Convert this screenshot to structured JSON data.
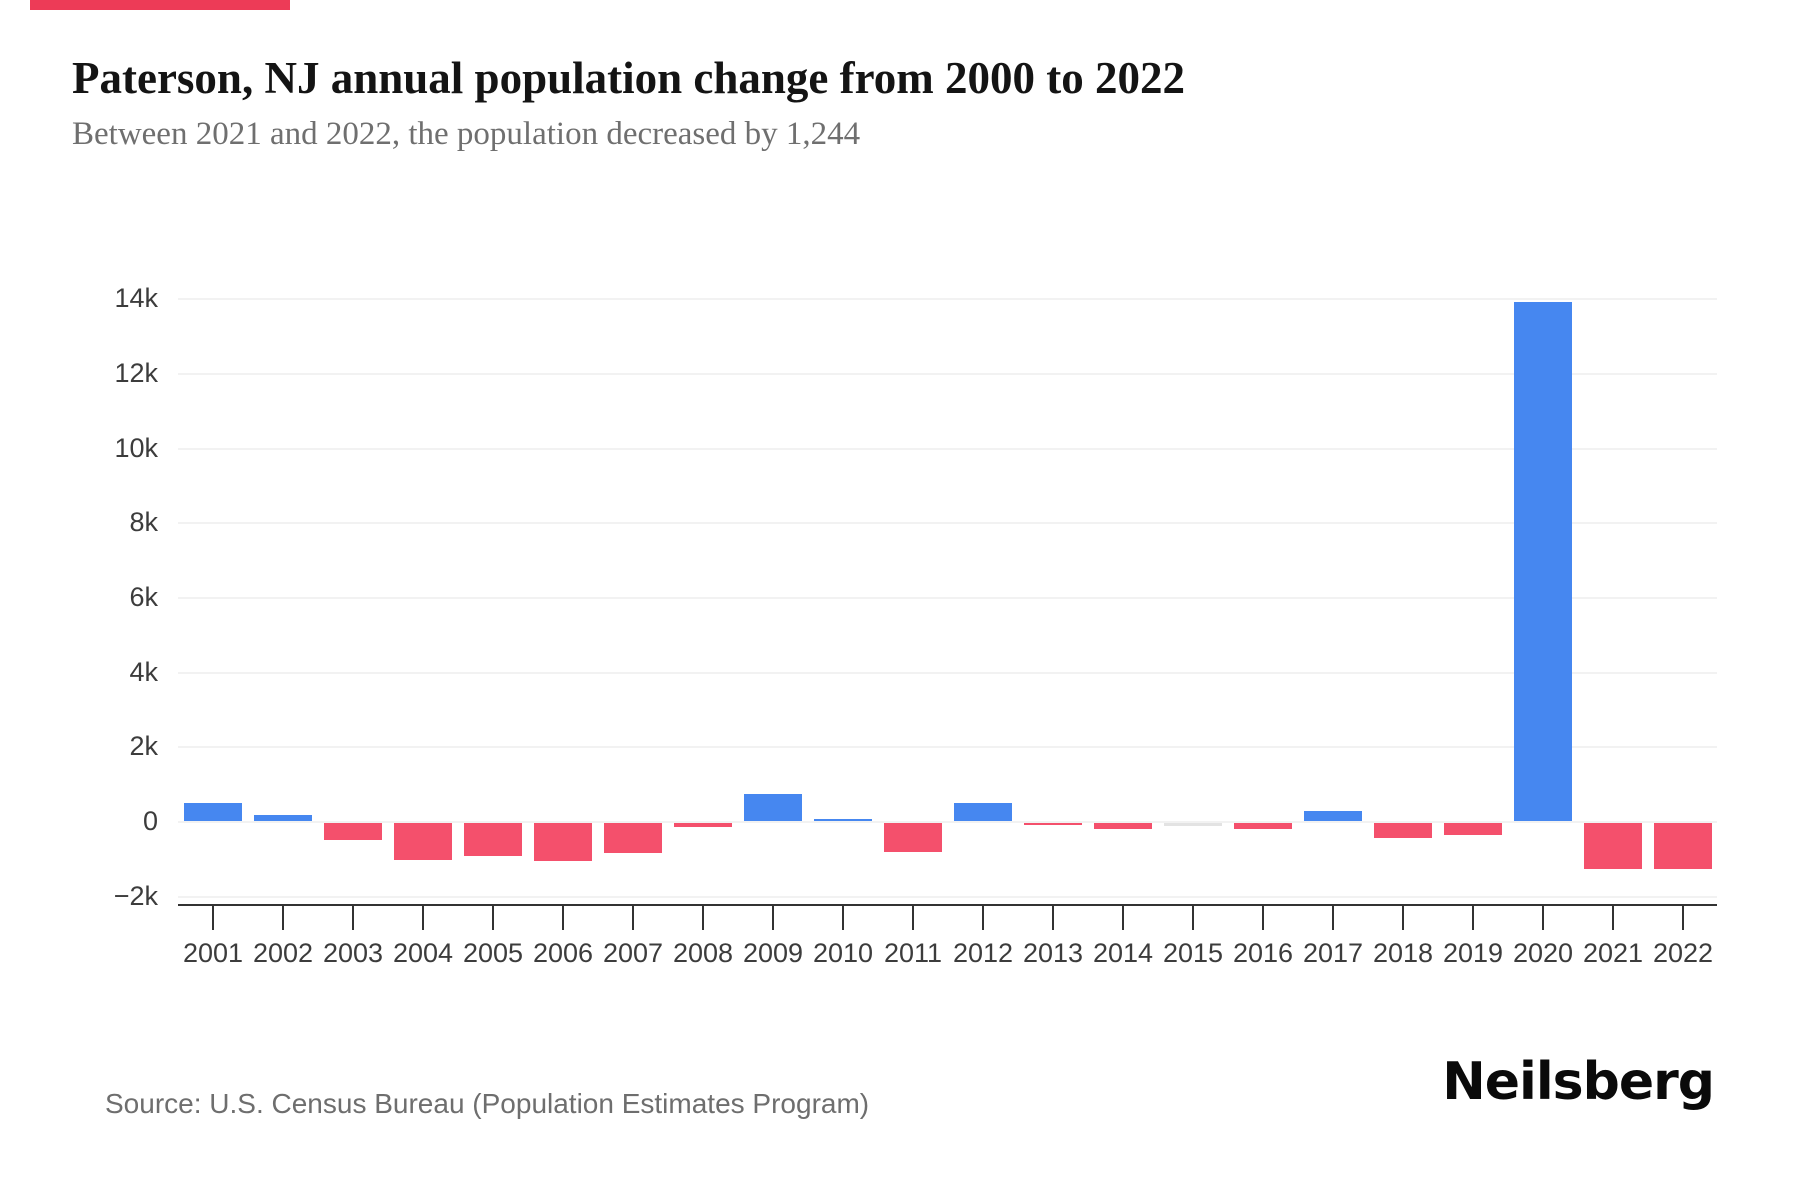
{
  "page": {
    "background": "#FFFFFF",
    "accent_bar_color": "#ED3B57"
  },
  "header": {
    "title": "Paterson, NJ annual population change from 2000 to 2022",
    "subtitle": "Between 2021 and 2022, the population decreased by 1,244"
  },
  "chart_data": {
    "type": "bar",
    "title": "Paterson, NJ annual population change from 2000 to 2022",
    "subtitle": "Between 2021 and 2022, the population decreased by 1,244",
    "categories": [
      "2001",
      "2002",
      "2003",
      "2004",
      "2005",
      "2006",
      "2007",
      "2008",
      "2009",
      "2010",
      "2011",
      "2012",
      "2013",
      "2014",
      "2015",
      "2016",
      "2017",
      "2018",
      "2019",
      "2020",
      "2021",
      "2022"
    ],
    "values": [
      480,
      160,
      -460,
      -990,
      -880,
      -1010,
      -800,
      -120,
      730,
      40,
      -780,
      490,
      -50,
      -150,
      -10,
      -170,
      270,
      -410,
      -330,
      13900,
      -1230,
      -1244
    ],
    "xlabel": "",
    "ylabel": "",
    "ylim": [
      -2200,
      15000
    ],
    "yticks": [
      {
        "label": "14k",
        "value": 14000
      },
      {
        "label": "12k",
        "value": 12000
      },
      {
        "label": "10k",
        "value": 10000
      },
      {
        "label": "8k",
        "value": 8000
      },
      {
        "label": "6k",
        "value": 6000
      },
      {
        "label": "4k",
        "value": 4000
      },
      {
        "label": "2k",
        "value": 2000
      },
      {
        "label": "0",
        "value": 0
      },
      {
        "label": "−2k",
        "value": -2000
      }
    ],
    "grid": "horizontal",
    "legend": "none",
    "colors": {
      "positive": "#4687F0",
      "negative": "#F4506C",
      "zero": "#E3E3E3"
    }
  },
  "footer": {
    "source": "Source: U.S. Census Bureau (Population Estimates Program)",
    "brand": "Neilsberg"
  }
}
